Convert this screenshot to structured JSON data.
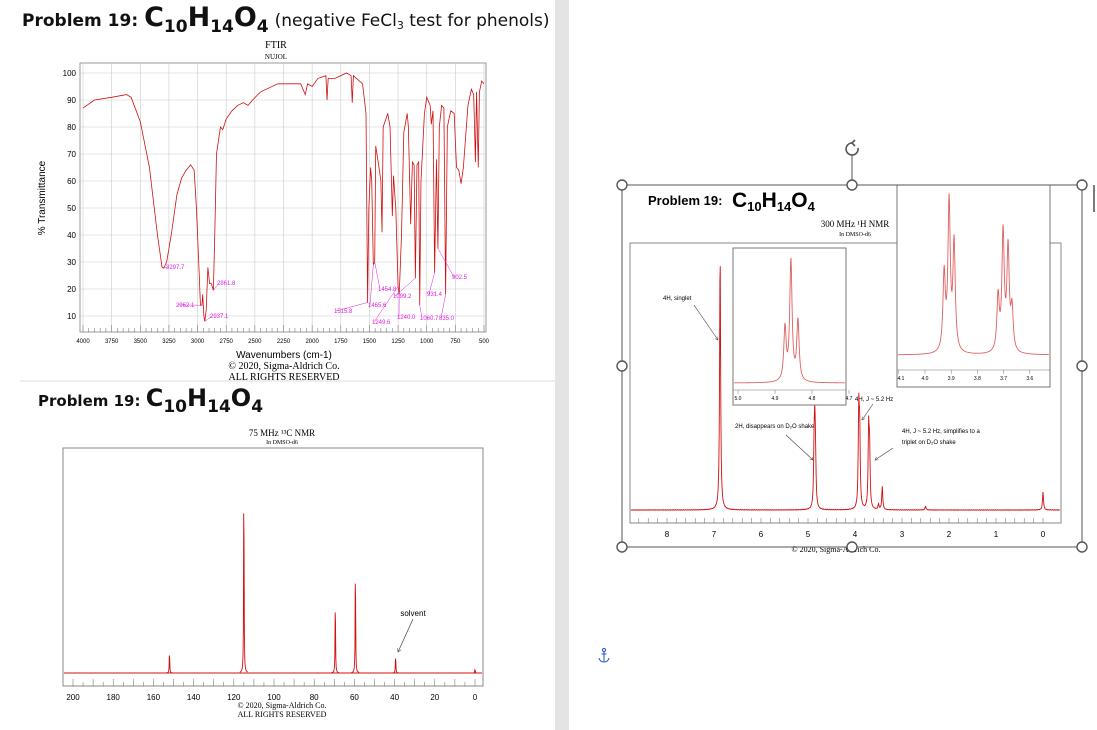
{
  "document": {
    "problem_label": "Problem 19:",
    "formula": {
      "c": "C",
      "c_n": "10",
      "h": "H",
      "h_n": "14",
      "o": "O",
      "o_n": "4"
    },
    "note": "(negative FeCl",
    "note_sub": "3",
    "note_end": " test for phenols)"
  },
  "ir": {
    "title": "FTIR",
    "subtitle": "NUJOL",
    "copyright": "© 2020, Sigma-Aldrich Co.",
    "rights": "ALL RIGHTS RESERVED"
  },
  "c13": {
    "title": "75 MHz ¹³C NMR",
    "subtitle": "In DMSO-d6",
    "copyright": "© 2020, Sigma-Aldrich Co.",
    "rights": "ALL RIGHTS RESERVED",
    "solvent_label": "solvent"
  },
  "h1": {
    "title": "300 MHz ¹H NMR",
    "subtitle": "In DMSO-d6",
    "copyright": "© 2020, Sigma-Aldrich Co.",
    "annotations": [
      "4H, singlet",
      "2H, disappears on D₂O shake",
      "4H, J ~ 5.2 Hz",
      "4H, J ~ 5.2 Hz, simplifies to a",
      "triplet on D₂O shake"
    ]
  },
  "colors": {
    "spectrum": "#d01010",
    "peak_label": "#e020e0",
    "selection": "#555555",
    "gutter": "#e4e4e4"
  },
  "icons": {
    "anchor": "anchor-icon",
    "rotate": "rotate-handle-icon"
  },
  "chart_data": [
    {
      "type": "line",
      "title": "FTIR",
      "subtitle": "NUJOL",
      "xlabel": "Wavenumbers (cm-1)",
      "ylabel": "% Transmittance",
      "xlim": [
        4000,
        500
      ],
      "ylim": [
        5,
        102
      ],
      "x_ticks": [
        "4000",
        "3750",
        "3500",
        "3250",
        "3000",
        "2750",
        "2500",
        "2250",
        "2000",
        "1750",
        "1500",
        "1250",
        "1000",
        "750",
        "500"
      ],
      "y_ticks": [
        "100",
        "90",
        "80",
        "70",
        "60",
        "50",
        "40",
        "30",
        "20",
        "10"
      ],
      "grid": true,
      "series": [
        {
          "points": [
            [
              4000,
              87
            ],
            [
              3900,
              90
            ],
            [
              3750,
              91
            ],
            [
              3620,
              92
            ],
            [
              3580,
              91
            ],
            [
              3500,
              82
            ],
            [
              3420,
              65
            ],
            [
              3350,
              40
            ],
            [
              3310,
              28
            ],
            [
              3297,
              27.7
            ],
            [
              3270,
              30
            ],
            [
              3230,
              40
            ],
            [
              3180,
              55
            ],
            [
              3140,
              61
            ],
            [
              3100,
              64
            ],
            [
              3060,
              66
            ],
            [
              3030,
              64
            ],
            [
              3010,
              50
            ],
            [
              2990,
              30
            ],
            [
              2975,
              14
            ],
            [
              2962,
              14
            ],
            [
              2955,
              18
            ],
            [
              2945,
              10
            ],
            [
              2937,
              8
            ],
            [
              2925,
              12
            ],
            [
              2910,
              28
            ],
            [
              2895,
              22
            ],
            [
              2880,
              22
            ],
            [
              2862,
              19.5
            ],
            [
              2850,
              40
            ],
            [
              2835,
              70
            ],
            [
              2800,
              80
            ],
            [
              2780,
              79
            ],
            [
              2750,
              83
            ],
            [
              2700,
              86
            ],
            [
              2650,
              88
            ],
            [
              2600,
              89
            ],
            [
              2560,
              88
            ],
            [
              2520,
              90
            ],
            [
              2450,
              93
            ],
            [
              2400,
              94
            ],
            [
              2300,
              96
            ],
            [
              2200,
              96
            ],
            [
              2100,
              96
            ],
            [
              2060,
              92
            ],
            [
              2040,
              96
            ],
            [
              2000,
              95
            ],
            [
              1950,
              98
            ],
            [
              1880,
              99
            ],
            [
              1870,
              90
            ],
            [
              1860,
              98
            ],
            [
              1800,
              98
            ],
            [
              1700,
              100
            ],
            [
              1660,
              99
            ],
            [
              1650,
              89
            ],
            [
              1640,
              99
            ],
            [
              1560,
              96
            ],
            [
              1530,
              85
            ],
            [
              1516,
              15
            ],
            [
              1505,
              50
            ],
            [
              1490,
              65
            ],
            [
              1480,
              60
            ],
            [
              1466,
              29
            ],
            [
              1454,
              30
            ],
            [
              1445,
              73
            ],
            [
              1420,
              66
            ],
            [
              1400,
              60
            ],
            [
              1390,
              41
            ],
            [
              1380,
              80
            ],
            [
              1340,
              85
            ],
            [
              1320,
              80
            ],
            [
              1300,
              47
            ],
            [
              1290,
              62
            ],
            [
              1270,
              50
            ],
            [
              1250,
              21
            ],
            [
              1240,
              18
            ],
            [
              1220,
              40
            ],
            [
              1200,
              78
            ],
            [
              1170,
              85
            ],
            [
              1160,
              80
            ],
            [
              1140,
              44
            ],
            [
              1125,
              67
            ],
            [
              1110,
              66
            ],
            [
              1099,
              24
            ],
            [
              1085,
              66
            ],
            [
              1070,
              67
            ],
            [
              1061,
              14
            ],
            [
              1050,
              60
            ],
            [
              1020,
              85
            ],
            [
              1000,
              91
            ],
            [
              970,
              88
            ],
            [
              960,
              81
            ],
            [
              945,
              86
            ],
            [
              931,
              26
            ],
            [
              915,
              68
            ],
            [
              902,
              35
            ],
            [
              890,
              80
            ],
            [
              870,
              88
            ],
            [
              850,
              87
            ],
            [
              835,
              18
            ],
            [
              820,
              80
            ],
            [
              790,
              86
            ],
            [
              760,
              85
            ],
            [
              740,
              65
            ],
            [
              720,
              64
            ],
            [
              700,
              59
            ],
            [
              680,
              65
            ],
            [
              640,
              88
            ],
            [
              610,
              94
            ],
            [
              590,
              92
            ],
            [
              575,
              67
            ],
            [
              565,
              93
            ],
            [
              550,
              65
            ],
            [
              540,
              93
            ],
            [
              520,
              97
            ],
            [
              500,
              96
            ]
          ]
        }
      ],
      "peak_labels": [
        "3297.7",
        "2861.8",
        "2962.1",
        "2937.1",
        "1515.8",
        "1454.8",
        "1465.6",
        "1249.6",
        "1240.0",
        "1099.2",
        "1060.7",
        "931.4",
        "835.0",
        "902.5"
      ]
    },
    {
      "type": "line",
      "title": "75 MHz ¹³C NMR",
      "subtitle": "In DMSO-d6",
      "xlim": [
        200,
        0
      ],
      "x_ticks": [
        "200",
        "180",
        "160",
        "140",
        "120",
        "100",
        "80",
        "60",
        "40",
        "20",
        "0"
      ],
      "peaks": [
        {
          "ppm": 152,
          "rel": 0.11
        },
        {
          "ppm": 115,
          "rel": 1.0
        },
        {
          "ppm": 69.5,
          "rel": 0.38
        },
        {
          "ppm": 59.5,
          "rel": 0.56
        },
        {
          "ppm": 39.5,
          "rel": 0.09
        },
        {
          "ppm": 0,
          "rel": 0.02
        }
      ]
    },
    {
      "type": "line",
      "title": "300 MHz ¹H NMR",
      "subtitle": "In DMSO-d6",
      "xlim": [
        8.8,
        -0.3
      ],
      "x_ticks": [
        "8",
        "7",
        "6",
        "5",
        "4",
        "3",
        "2",
        "1",
        "0"
      ],
      "peaks": [
        {
          "ppm": 6.87,
          "rel": 1.0
        },
        {
          "ppm": 4.87,
          "rel": 0.2
        },
        {
          "ppm": 4.855,
          "rel": 0.27
        },
        {
          "ppm": 4.84,
          "rel": 0.15
        },
        {
          "ppm": 3.92,
          "rel": 0.37
        },
        {
          "ppm": 3.9,
          "rel": 0.28
        },
        {
          "ppm": 3.71,
          "rel": 0.3
        },
        {
          "ppm": 3.69,
          "rel": 0.22
        },
        {
          "ppm": 3.42,
          "rel": 0.09
        },
        {
          "ppm": 3.5,
          "rel": 0.02
        },
        {
          "ppm": 2.5,
          "rel": 0.015
        },
        {
          "ppm": 0,
          "rel": 0.07
        }
      ],
      "insets": [
        {
          "xlim": [
            5.0,
            4.7
          ],
          "x_ticks": [
            "5.0",
            "4.9",
            "4.8",
            "4.7"
          ],
          "peaks": [
            {
              "ppm": 4.873,
              "rel": 0.44
            },
            {
              "ppm": 4.857,
              "rel": 1.0
            },
            {
              "ppm": 4.838,
              "rel": 0.5
            }
          ]
        },
        {
          "xlim": [
            4.1,
            3.5
          ],
          "x_ticks": [
            "4.1",
            "4.0",
            "3.9",
            "3.8",
            "3.7",
            "3.6"
          ],
          "peaks": [
            {
              "ppm": 3.927,
              "rel": 0.52
            },
            {
              "ppm": 3.908,
              "rel": 1.0
            },
            {
              "ppm": 3.889,
              "rel": 0.73
            },
            {
              "ppm": 3.721,
              "rel": 0.37
            },
            {
              "ppm": 3.702,
              "rel": 0.8
            },
            {
              "ppm": 3.683,
              "rel": 0.69
            },
            {
              "ppm": 3.668,
              "rel": 0.28
            }
          ]
        }
      ]
    }
  ]
}
